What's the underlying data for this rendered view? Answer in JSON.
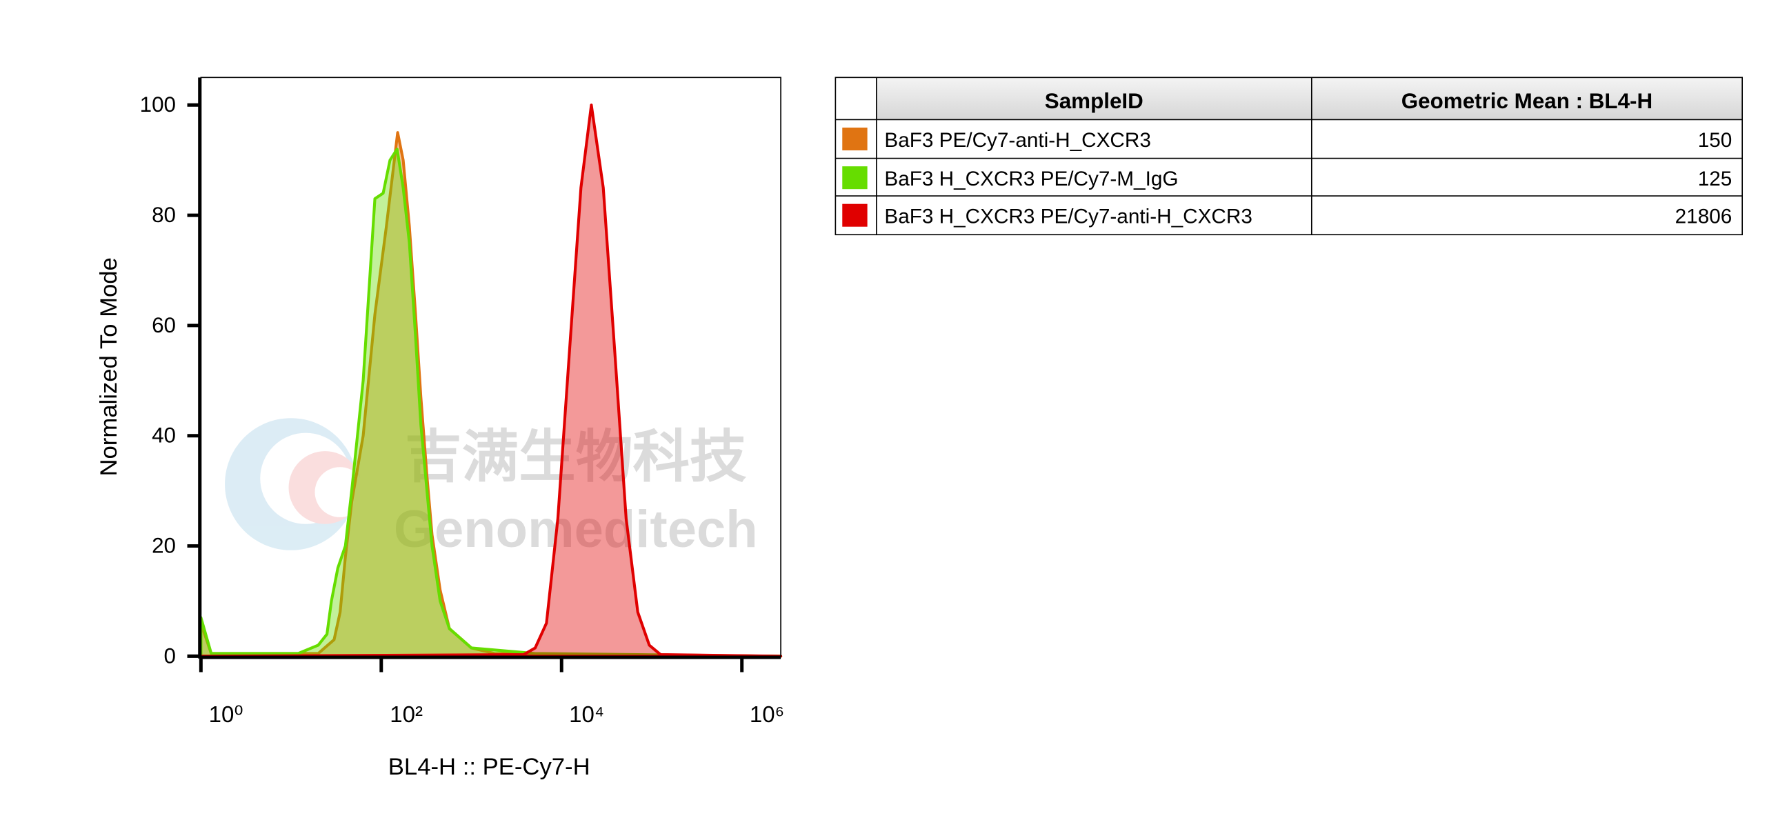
{
  "chart_data": {
    "type": "histogram",
    "x_label": "BL4-H :: PE-Cy7-H",
    "y_label": "Normalized To Mode",
    "xscale": "log",
    "xlim": [
      1,
      2700000
    ],
    "xticks": [
      {
        "value": 1,
        "label": "10⁰"
      },
      {
        "value": 100,
        "label": "10²"
      },
      {
        "value": 10000,
        "label": "10⁴"
      },
      {
        "value": 1000000,
        "label": "10⁶"
      }
    ],
    "ylim": [
      0,
      105
    ],
    "yticks": [
      0,
      20,
      40,
      60,
      80,
      100
    ],
    "series": [
      {
        "name": "BaF3 PE/Cy7-anti-H_CXCR3",
        "color": "#e07412",
        "x": [
          1,
          1.3,
          20,
          30,
          35,
          40,
          47,
          63,
          85,
          114,
          135,
          152,
          175,
          205,
          240,
          275,
          320,
          366,
          450,
          570,
          1000,
          1800,
          2700000
        ],
        "values": [
          6,
          0.5,
          0.5,
          3,
          8,
          18,
          28,
          40,
          62,
          78,
          88,
          95,
          90,
          78,
          62,
          47,
          33,
          22,
          12,
          5,
          1.5,
          0.5,
          0
        ]
      },
      {
        "name": "BaF3 H_CXCR3 PE/Cy7-M_IgG",
        "color": "#66dd00",
        "x": [
          1,
          1.3,
          12,
          20,
          25,
          28,
          33,
          40,
          47,
          63,
          85,
          105,
          125,
          150,
          175,
          205,
          240,
          275,
          366,
          450,
          570,
          1000,
          5000,
          2700000
        ],
        "values": [
          7,
          0.5,
          0.5,
          2,
          4,
          10,
          16,
          20,
          30,
          50,
          83,
          84,
          90,
          92,
          85,
          75,
          58,
          42,
          20,
          10,
          5,
          1.5,
          0.5,
          0
        ]
      },
      {
        "name": "BaF3 H_CXCR3 PE/Cy7-anti-H_CXCR3",
        "color": "#e00000",
        "x": [
          1,
          3800,
          5100,
          6800,
          9100,
          12200,
          16400,
          21400,
          29000,
          39000,
          52000,
          70000,
          94000,
          125000,
          2700000
        ],
        "values": [
          0,
          0.3,
          1.5,
          6,
          25,
          55,
          85,
          100,
          85,
          55,
          25,
          8,
          2,
          0.3,
          0
        ]
      }
    ],
    "table": {
      "header": [
        "SampleID",
        "Geometric Mean : BL4-H"
      ],
      "rows": [
        {
          "sample": "BaF3 PE/Cy7-anti-H_CXCR3",
          "value": "150"
        },
        {
          "sample": "BaF3 H_CXCR3 PE/Cy7-M_IgG",
          "value": "125"
        },
        {
          "sample": "BaF3 H_CXCR3 PE/Cy7-anti-H_CXCR3",
          "value": "21806"
        }
      ]
    },
    "watermark": {
      "cn": "吉满生物科技",
      "en": "Genomeditech"
    }
  }
}
